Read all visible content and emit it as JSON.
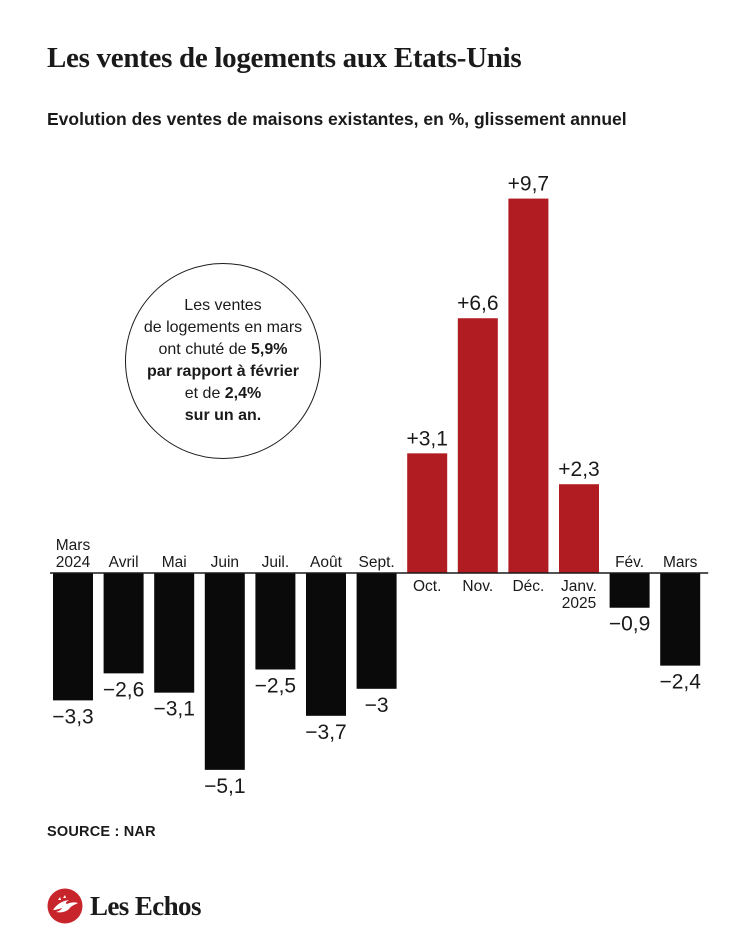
{
  "title": "Les ventes de logements aux Etats-Unis",
  "subtitle": "Evolution des ventes de maisons existantes, en %, glissement annuel",
  "colors": {
    "positive": "#b01c22",
    "negative": "#0a0a0a",
    "text": "#1a1a1a",
    "logo": "#c7242b"
  },
  "chart_data": {
    "type": "bar",
    "categories": [
      "Mars 2024",
      "Avril",
      "Mai",
      "Juin",
      "Juil.",
      "Août",
      "Sept.",
      "Oct.",
      "Nov.",
      "Déc.",
      "Janv. 2025",
      "Fév.",
      "Mars"
    ],
    "values": [
      -3.3,
      -2.6,
      -3.1,
      -5.1,
      -2.5,
      -3.7,
      -3,
      3.1,
      6.6,
      9.7,
      2.3,
      -0.9,
      -2.4
    ],
    "value_labels": [
      "−3,3",
      "−2,6",
      "−3,1",
      "−5,1",
      "−2,5",
      "−3,7",
      "−3",
      "+3,1",
      "+6,6",
      "+9,7",
      "+2,3",
      "−0,9",
      "−2,4"
    ],
    "title": "Les ventes de logements aux Etats-Unis",
    "subtitle": "Evolution des ventes de maisons existantes, en %, glissement annuel",
    "xlabel": "",
    "ylabel": "",
    "ylim": [
      -5.1,
      9.7
    ],
    "grid": false,
    "legend": "none"
  },
  "callout": {
    "line1": "Les ventes",
    "line2": "de logements en mars",
    "line3_pre": "ont chuté de ",
    "line3_bold": "5,9%",
    "line4_bold": "par rapport à février",
    "line5_pre": "et de ",
    "line5_bold": "2,4%",
    "line6_bold": "sur un an."
  },
  "source": "SOURCE : NAR",
  "logo": {
    "text": "Les Echos",
    "icon": "les-echos-logo-icon"
  }
}
